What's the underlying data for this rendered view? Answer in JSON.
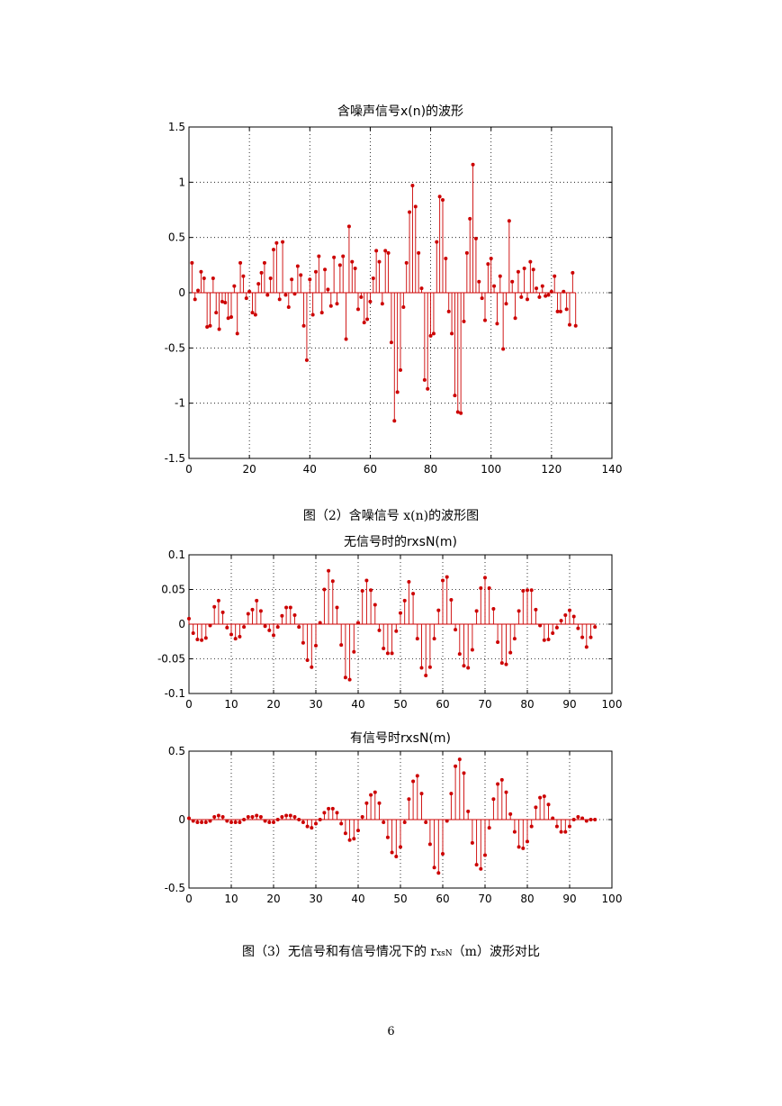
{
  "page_number": "6",
  "colors": {
    "stem": "#cc0000",
    "axis": "#000000",
    "grid": "#000000"
  },
  "chart_data": [
    {
      "type": "stem",
      "title": "含噪声信号x(n)的波形",
      "xlabel": "",
      "ylabel": "",
      "xlim": [
        0,
        140
      ],
      "ylim": [
        -1.5,
        1.5
      ],
      "xticks": [
        0,
        20,
        40,
        60,
        80,
        100,
        120,
        140
      ],
      "yticks": [
        -1.5,
        -1,
        -0.5,
        0,
        0.5,
        1,
        1.5
      ],
      "xtick_labels": [
        "0",
        "20",
        "40",
        "60",
        "80",
        "100",
        "120",
        "140"
      ],
      "ytick_labels": [
        "-1.5",
        "-1",
        "-0.5",
        "0",
        "0.5",
        "1",
        "1.5"
      ],
      "grid": true,
      "x": [
        1,
        2,
        3,
        4,
        5,
        6,
        7,
        8,
        9,
        10,
        11,
        12,
        13,
        14,
        15,
        16,
        17,
        18,
        19,
        20,
        21,
        22,
        23,
        24,
        25,
        26,
        27,
        28,
        29,
        30,
        31,
        32,
        33,
        34,
        35,
        36,
        37,
        38,
        39,
        40,
        41,
        42,
        43,
        44,
        45,
        46,
        47,
        48,
        49,
        50,
        51,
        52,
        53,
        54,
        55,
        56,
        57,
        58,
        59,
        60,
        61,
        62,
        63,
        64,
        65,
        66,
        67,
        68,
        69,
        70,
        71,
        72,
        73,
        74,
        75,
        76,
        77,
        78,
        79,
        80,
        81,
        82,
        83,
        84,
        85,
        86,
        87,
        88,
        89,
        90,
        91,
        92,
        93,
        94,
        95,
        96,
        97,
        98,
        99,
        100,
        101,
        102,
        103,
        104,
        105,
        106,
        107,
        108,
        109,
        110,
        111,
        112,
        113,
        114,
        115,
        116,
        117,
        118,
        119,
        120,
        121,
        122,
        123,
        124,
        125,
        126,
        127,
        128
      ],
      "values": [
        0.27,
        -0.06,
        0.02,
        0.19,
        0.13,
        -0.31,
        -0.3,
        0.13,
        -0.18,
        -0.33,
        -0.08,
        -0.09,
        -0.23,
        -0.22,
        0.06,
        -0.37,
        0.27,
        0.15,
        -0.05,
        0.01,
        -0.18,
        -0.2,
        0.08,
        0.18,
        0.27,
        -0.02,
        0.13,
        0.39,
        0.45,
        -0.06,
        0.46,
        -0.02,
        -0.13,
        0.12,
        -0.01,
        0.24,
        0.16,
        -0.3,
        -0.61,
        0.12,
        -0.2,
        0.19,
        0.33,
        -0.18,
        0.21,
        0.03,
        -0.12,
        0.32,
        -0.1,
        0.25,
        0.33,
        -0.42,
        0.6,
        0.28,
        0.22,
        -0.15,
        -0.04,
        -0.27,
        -0.24,
        -0.08,
        0.13,
        0.38,
        0.28,
        -0.1,
        0.38,
        0.36,
        -0.45,
        -1.16,
        -0.9,
        -0.7,
        -0.13,
        0.27,
        0.73,
        0.97,
        0.78,
        0.36,
        0.04,
        -0.79,
        -0.87,
        -0.39,
        -0.37,
        0.46,
        0.87,
        0.84,
        0.31,
        -0.17,
        -0.37,
        -0.93,
        -1.08,
        -1.09,
        -0.26,
        0.36,
        0.67,
        1.16,
        0.49,
        0.1,
        -0.05,
        -0.25,
        0.26,
        0.31,
        0.06,
        -0.28,
        0.15,
        -0.51,
        -0.1,
        0.65,
        0.1,
        -0.23,
        0.19,
        -0.04,
        0.22,
        -0.06,
        0.28,
        0.21,
        0.04,
        -0.04,
        0.06,
        -0.03,
        -0.02,
        0.01,
        0.15,
        -0.17,
        -0.17,
        0.01,
        -0.15,
        -0.29,
        0.18,
        -0.3
      ]
    },
    {
      "type": "stem",
      "title": "无信号时的rxsN(m)",
      "xlabel": "",
      "ylabel": "",
      "xlim": [
        0,
        100
      ],
      "ylim": [
        -0.1,
        0.1
      ],
      "xticks": [
        0,
        10,
        20,
        30,
        40,
        50,
        60,
        70,
        80,
        90,
        100
      ],
      "yticks": [
        -0.1,
        -0.05,
        0,
        0.05,
        0.1
      ],
      "xtick_labels": [
        "0",
        "10",
        "20",
        "30",
        "40",
        "50",
        "60",
        "70",
        "80",
        "90",
        "100"
      ],
      "ytick_labels": [
        "-0.1",
        "-0.05",
        "0",
        "0.05",
        "0.1"
      ],
      "grid": true,
      "x": [
        0,
        1,
        2,
        3,
        4,
        5,
        6,
        7,
        8,
        9,
        10,
        11,
        12,
        13,
        14,
        15,
        16,
        17,
        18,
        19,
        20,
        21,
        22,
        23,
        24,
        25,
        26,
        27,
        28,
        29,
        30,
        31,
        32,
        33,
        34,
        35,
        36,
        37,
        38,
        39,
        40,
        41,
        42,
        43,
        44,
        45,
        46,
        47,
        48,
        49,
        50,
        51,
        52,
        53,
        54,
        55,
        56,
        57,
        58,
        59,
        60,
        61,
        62,
        63,
        64,
        65,
        66,
        67,
        68,
        69,
        70,
        71,
        72,
        73,
        74,
        75,
        76,
        77,
        78,
        79,
        80,
        81,
        82,
        83,
        84,
        85,
        86,
        87,
        88,
        89,
        90,
        91,
        92,
        93,
        94,
        95,
        96
      ],
      "values": [
        0.008,
        -0.013,
        -0.022,
        -0.023,
        -0.02,
        -0.002,
        0.025,
        0.034,
        0.017,
        -0.005,
        -0.015,
        -0.021,
        -0.018,
        -0.004,
        0.015,
        0.021,
        0.034,
        0.019,
        -0.003,
        -0.009,
        -0.016,
        -0.004,
        0.012,
        0.024,
        0.024,
        0.013,
        -0.004,
        -0.027,
        -0.052,
        -0.062,
        -0.031,
        0.002,
        0.05,
        0.077,
        0.062,
        0.024,
        -0.03,
        -0.077,
        -0.08,
        -0.04,
        0.002,
        0.048,
        0.063,
        0.049,
        0.028,
        -0.009,
        -0.035,
        -0.042,
        -0.042,
        -0.01,
        0.016,
        0.034,
        0.061,
        0.044,
        -0.021,
        -0.063,
        -0.074,
        -0.062,
        -0.021,
        0.02,
        0.063,
        0.068,
        0.035,
        -0.008,
        -0.043,
        -0.06,
        -0.063,
        -0.037,
        0.019,
        0.052,
        0.067,
        0.052,
        0.022,
        -0.026,
        -0.056,
        -0.058,
        -0.041,
        -0.021,
        0.019,
        0.048,
        0.049,
        0.049,
        0.021,
        -0.002,
        -0.023,
        -0.022,
        -0.013,
        -0.005,
        0.005,
        0.013,
        0.02,
        0.011,
        -0.006,
        -0.019,
        -0.033,
        -0.019,
        -0.004
      ]
    },
    {
      "type": "stem",
      "title": "有信号时rxsN(m)",
      "xlabel": "",
      "ylabel": "",
      "xlim": [
        0,
        100
      ],
      "ylim": [
        -0.5,
        0.5
      ],
      "xticks": [
        0,
        10,
        20,
        30,
        40,
        50,
        60,
        70,
        80,
        90,
        100
      ],
      "yticks": [
        -0.5,
        0,
        0.5
      ],
      "xtick_labels": [
        "0",
        "10",
        "20",
        "30",
        "40",
        "50",
        "60",
        "70",
        "80",
        "90",
        "100"
      ],
      "ytick_labels": [
        "-0.5",
        "0",
        "0.5"
      ],
      "grid": true,
      "x": [
        0,
        1,
        2,
        3,
        4,
        5,
        6,
        7,
        8,
        9,
        10,
        11,
        12,
        13,
        14,
        15,
        16,
        17,
        18,
        19,
        20,
        21,
        22,
        23,
        24,
        25,
        26,
        27,
        28,
        29,
        30,
        31,
        32,
        33,
        34,
        35,
        36,
        37,
        38,
        39,
        40,
        41,
        42,
        43,
        44,
        45,
        46,
        47,
        48,
        49,
        50,
        51,
        52,
        53,
        54,
        55,
        56,
        57,
        58,
        59,
        60,
        61,
        62,
        63,
        64,
        65,
        66,
        67,
        68,
        69,
        70,
        71,
        72,
        73,
        74,
        75,
        76,
        77,
        78,
        79,
        80,
        81,
        82,
        83,
        84,
        85,
        86,
        87,
        88,
        89,
        90,
        91,
        92,
        93,
        94,
        95,
        96
      ],
      "values": [
        0.01,
        -0.01,
        -0.02,
        -0.02,
        -0.02,
        -0.01,
        0.02,
        0.03,
        0.02,
        -0.01,
        -0.02,
        -0.02,
        -0.02,
        0.0,
        0.02,
        0.02,
        0.03,
        0.02,
        -0.01,
        -0.02,
        -0.02,
        0.0,
        0.02,
        0.03,
        0.03,
        0.02,
        0.0,
        -0.02,
        -0.05,
        -0.06,
        -0.03,
        0.0,
        0.05,
        0.08,
        0.08,
        0.05,
        -0.03,
        -0.1,
        -0.15,
        -0.14,
        -0.08,
        0.02,
        0.12,
        0.18,
        0.2,
        0.12,
        -0.02,
        -0.13,
        -0.24,
        -0.27,
        -0.2,
        -0.02,
        0.15,
        0.28,
        0.32,
        0.19,
        -0.02,
        -0.18,
        -0.35,
        -0.39,
        -0.25,
        -0.01,
        0.19,
        0.39,
        0.44,
        0.34,
        0.06,
        -0.17,
        -0.33,
        -0.36,
        -0.26,
        -0.06,
        0.15,
        0.26,
        0.29,
        0.2,
        0.04,
        -0.09,
        -0.2,
        -0.21,
        -0.16,
        -0.05,
        0.09,
        0.16,
        0.17,
        0.11,
        0.01,
        -0.05,
        -0.09,
        -0.09,
        -0.05,
        0.0,
        0.02,
        0.01,
        -0.01,
        0.0,
        0.0
      ]
    }
  ],
  "captions": {
    "fig2": "图（2）含噪信号 x(n)的波形图",
    "fig3_pre": "图（3）无信号和有信号情况下的 r",
    "fig3_sub": "xsN",
    "fig3_post": "（m）波形对比"
  }
}
